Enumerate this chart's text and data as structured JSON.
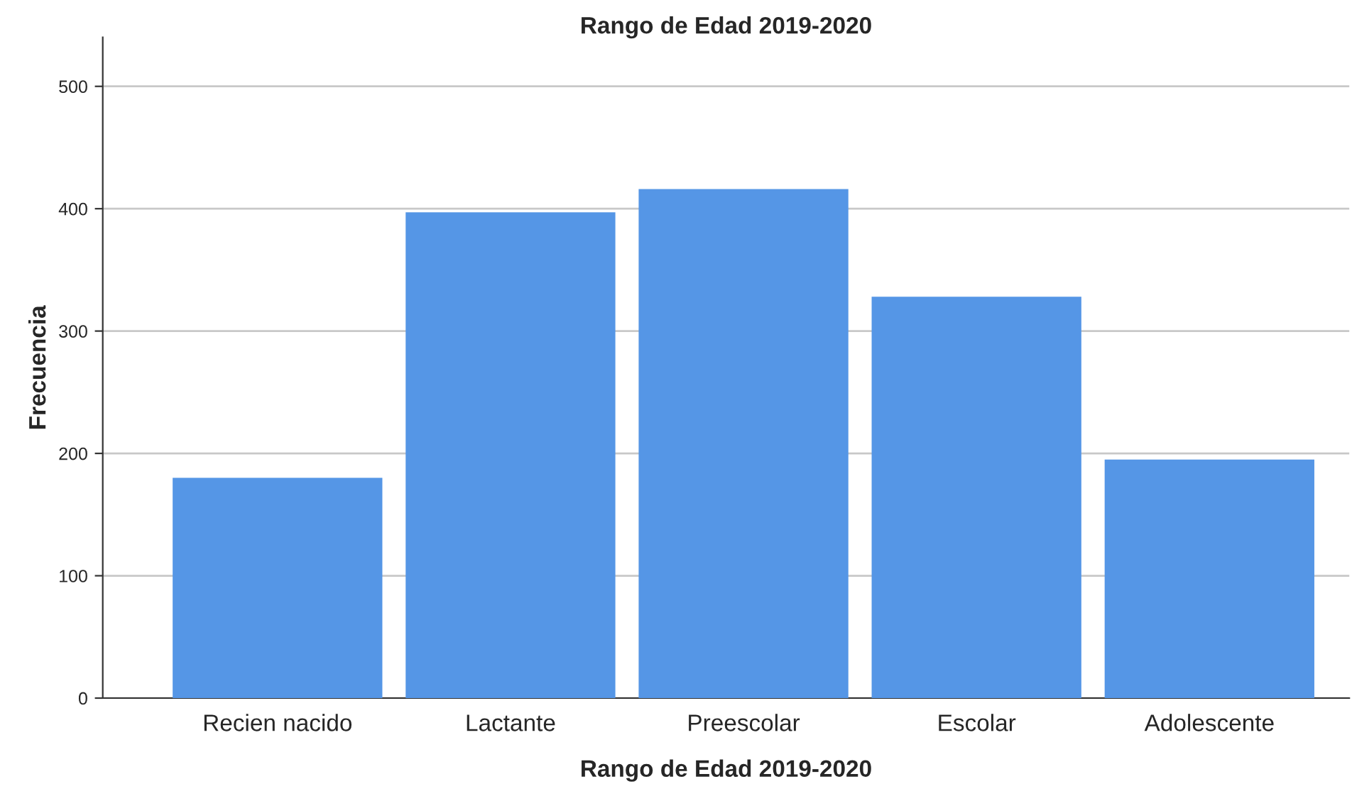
{
  "chart_data": {
    "type": "bar",
    "title": "Rango de Edad 2019-2020",
    "xlabel": "Rango de Edad 2019-2020",
    "ylabel": "Frecuencia",
    "categories": [
      "Recien nacido",
      "Lactante",
      "Preescolar",
      "Escolar",
      "Adolescente"
    ],
    "values": [
      180,
      397,
      416,
      328,
      195
    ],
    "color": "#5596e6",
    "ylim": [
      0,
      540
    ],
    "yticks": [
      0,
      100,
      200,
      300,
      400,
      500
    ],
    "grid": "y",
    "legend": false
  }
}
